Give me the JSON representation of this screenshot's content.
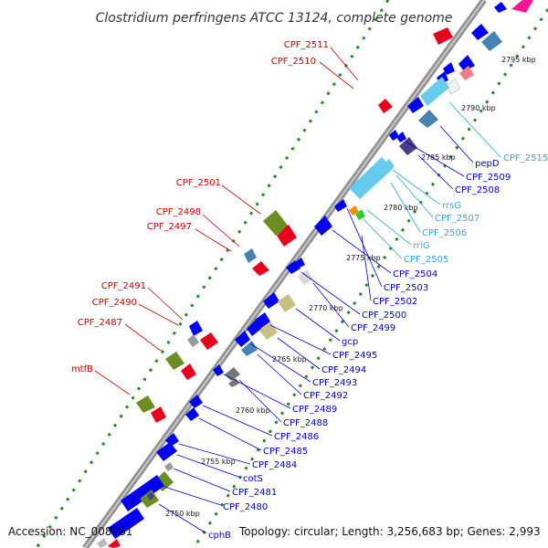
{
  "title": "Clostridium perfringens ATCC 13124, complete genome",
  "accession": "Accession: NC_008261",
  "topology": "Topology: circular; Length: 3,256,683 bp; Genes: 2,993",
  "colors": {
    "backbone": "#808080",
    "forward_cds": "#e8001c",
    "reverse_cds": "#0000f0",
    "olive_feature": "#6b8e23",
    "light_olive_feature": "#c8c080",
    "rrna": "#66ccee",
    "steel_blue_feature": "#4682b4",
    "grey_feature": "#999999",
    "green_dots": "#228b22",
    "left_label": "#cc0000",
    "right_label_blue": "#0000cc",
    "right_label_cyan": "#33aadd"
  },
  "kbp_ticks": [
    {
      "id": "2795",
      "text": "2795 kbp"
    },
    {
      "id": "2790",
      "text": "2790 kbp"
    },
    {
      "id": "2785",
      "text": "2785 kbp"
    },
    {
      "id": "2780",
      "text": "2780 kbp"
    },
    {
      "id": "2775",
      "text": "2775 kbp"
    },
    {
      "id": "2770",
      "text": "2770 kbp"
    },
    {
      "id": "2765",
      "text": "2765 kbp"
    },
    {
      "id": "2760",
      "text": "2760 kbp"
    },
    {
      "id": "2755",
      "text": "2755 kbp"
    },
    {
      "id": "2750",
      "text": "2750 kbp"
    }
  ],
  "left_labels": [
    {
      "id": "cpf2511",
      "text": "CPF_2511"
    },
    {
      "id": "cpf2510",
      "text": "CPF_2510"
    },
    {
      "id": "cpf2501",
      "text": "CPF_2501"
    },
    {
      "id": "cpf2498",
      "text": "CPF_2498"
    },
    {
      "id": "cpf2497",
      "text": "CPF_2497"
    },
    {
      "id": "cpf2491",
      "text": "CPF_2491"
    },
    {
      "id": "cpf2490",
      "text": "CPF_2490"
    },
    {
      "id": "cpf2487",
      "text": "CPF_2487"
    },
    {
      "id": "mtfb",
      "text": "mtfB"
    }
  ],
  "right_labels": [
    {
      "id": "cpf2515",
      "text": "CPF_2515",
      "color": "cyan"
    },
    {
      "id": "pepd",
      "text": "pepD",
      "color": "blue"
    },
    {
      "id": "cpf2509",
      "text": "CPF_2509",
      "color": "blue"
    },
    {
      "id": "cpf2508",
      "text": "CPF_2508",
      "color": "blue"
    },
    {
      "id": "rrsg",
      "text": "rrsG",
      "color": "cyan"
    },
    {
      "id": "cpf2507",
      "text": "CPF_2507",
      "color": "cyan"
    },
    {
      "id": "cpf2506",
      "text": "CPF_2506",
      "color": "cyan"
    },
    {
      "id": "rrlg",
      "text": "rrlG",
      "color": "cyan"
    },
    {
      "id": "cpf2505",
      "text": "CPF_2505",
      "color": "cyan"
    },
    {
      "id": "cpf2504",
      "text": "CPF_2504",
      "color": "blue"
    },
    {
      "id": "cpf2503",
      "text": "CPF_2503",
      "color": "blue"
    },
    {
      "id": "cpf2502",
      "text": "CPF_2502",
      "color": "blue"
    },
    {
      "id": "cpf2500",
      "text": "CPF_2500",
      "color": "blue"
    },
    {
      "id": "cpf2499",
      "text": "CPF_2499",
      "color": "blue"
    },
    {
      "id": "gcp",
      "text": "gcp",
      "color": "blue"
    },
    {
      "id": "cpf2495",
      "text": "CPF_2495",
      "color": "blue"
    },
    {
      "id": "cpf2494",
      "text": "CPF_2494",
      "color": "blue"
    },
    {
      "id": "cpf2493",
      "text": "CPF_2493",
      "color": "blue"
    },
    {
      "id": "cpf2492",
      "text": "CPF_2492",
      "color": "blue"
    },
    {
      "id": "cpf2489",
      "text": "CPF_2489",
      "color": "blue"
    },
    {
      "id": "cpf2488",
      "text": "CPF_2488",
      "color": "blue"
    },
    {
      "id": "cpf2486",
      "text": "CPF_2486",
      "color": "blue"
    },
    {
      "id": "cpf2485",
      "text": "CPF_2485",
      "color": "blue"
    },
    {
      "id": "cpf2484",
      "text": "CPF_2484",
      "color": "blue"
    },
    {
      "id": "cots",
      "text": "cotS",
      "color": "blue"
    },
    {
      "id": "cpf2481",
      "text": "CPF_2481",
      "color": "blue"
    },
    {
      "id": "cpf2480",
      "text": "CPF_2480",
      "color": "blue"
    },
    {
      "id": "cphb",
      "text": "cphB",
      "color": "blue"
    }
  ]
}
